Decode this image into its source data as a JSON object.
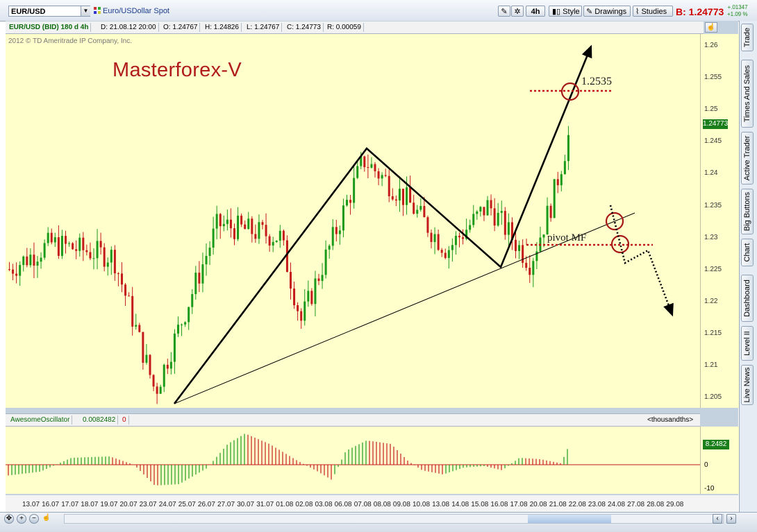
{
  "toolbar": {
    "symbol": "EUR/USD",
    "description": "Euro/USDollar Spot",
    "timeframe": "4h",
    "style_label": "Style",
    "drawings_label": "Drawings",
    "studies_label": "Studies",
    "bid_prefix": "B:",
    "bid_value": "1.24773",
    "change_abs": "+.01347",
    "change_pct": "+1.09 %"
  },
  "info": {
    "instrument": "EUR/USD (BID) 180 d 4h",
    "date": "D: 21.08.12 20:00",
    "open": "O: 1.24767",
    "high": "H: 1.24826",
    "low": "L: 1.24767",
    "close": "C: 1.24773",
    "range": "R: 0.00059"
  },
  "copyright": "2012 © TD Ameritrade IP Company, Inc.",
  "annotations": {
    "brand": "Masterforex-V",
    "target": "1.2535",
    "pivot": "pivot MF"
  },
  "price_axis": {
    "ticks": [
      "1.26",
      "1.255",
      "1.25",
      "1.245",
      "1.24",
      "1.235",
      "1.23",
      "1.225",
      "1.22",
      "1.215",
      "1.21",
      "1.205"
    ],
    "current": "1.24773"
  },
  "oscillator": {
    "name": "AwesomeOscillator",
    "value": "0.0082482",
    "zero": "0",
    "units": "<thousandths>",
    "current": "8.2482",
    "ticks": [
      "0",
      "-10"
    ]
  },
  "x_axis": [
    "13.07",
    "16.07",
    "17.07",
    "18.07",
    "19.07",
    "20.07",
    "23.07",
    "24.07",
    "25.07",
    "26.07",
    "27.07",
    "30.07",
    "31.07",
    "01.08",
    "02.08",
    "03.08",
    "06.08",
    "07.08",
    "08.08",
    "09.08",
    "10.08",
    "13.08",
    "14.08",
    "15.08",
    "16.08",
    "17.08",
    "20.08",
    "21.08",
    "22.08",
    "23.08",
    "24.08",
    "27.08",
    "28.08",
    "29.08"
  ],
  "side_tabs": [
    "Trade",
    "Times And Sales",
    "Active Trader",
    "Big Buttons",
    "Chart",
    "Dashboard",
    "Level II",
    "Live News"
  ],
  "colors": {
    "bull": "#1a9a1a",
    "bear": "#c41a1a",
    "plot_bg": "#ffffcc",
    "annotation_red": "#b01c1c"
  },
  "chart_data": {
    "type": "line",
    "title": "EUR/USD (BID) 180 d 4h",
    "ylim": [
      1.2035,
      1.2615
    ],
    "approx_close_path": [
      {
        "x": "13.07",
        "y": 1.225
      },
      {
        "x": "17.07",
        "y": 1.229
      },
      {
        "x": "20.07",
        "y": 1.227
      },
      {
        "x": "24.07",
        "y": 1.206
      },
      {
        "x": "27.07",
        "y": 1.232
      },
      {
        "x": "01.08",
        "y": 1.23
      },
      {
        "x": "02.08",
        "y": 1.217
      },
      {
        "x": "07.08",
        "y": 1.242
      },
      {
        "x": "09.08",
        "y": 1.236
      },
      {
        "x": "13.08",
        "y": 1.228
      },
      {
        "x": "15.08",
        "y": 1.235
      },
      {
        "x": "17.08",
        "y": 1.226
      },
      {
        "x": "20.08",
        "y": 1.235
      },
      {
        "x": "21.08",
        "y": 1.2477
      }
    ],
    "annotation_levels": {
      "target": 1.2535,
      "pivot": 1.229
    }
  }
}
